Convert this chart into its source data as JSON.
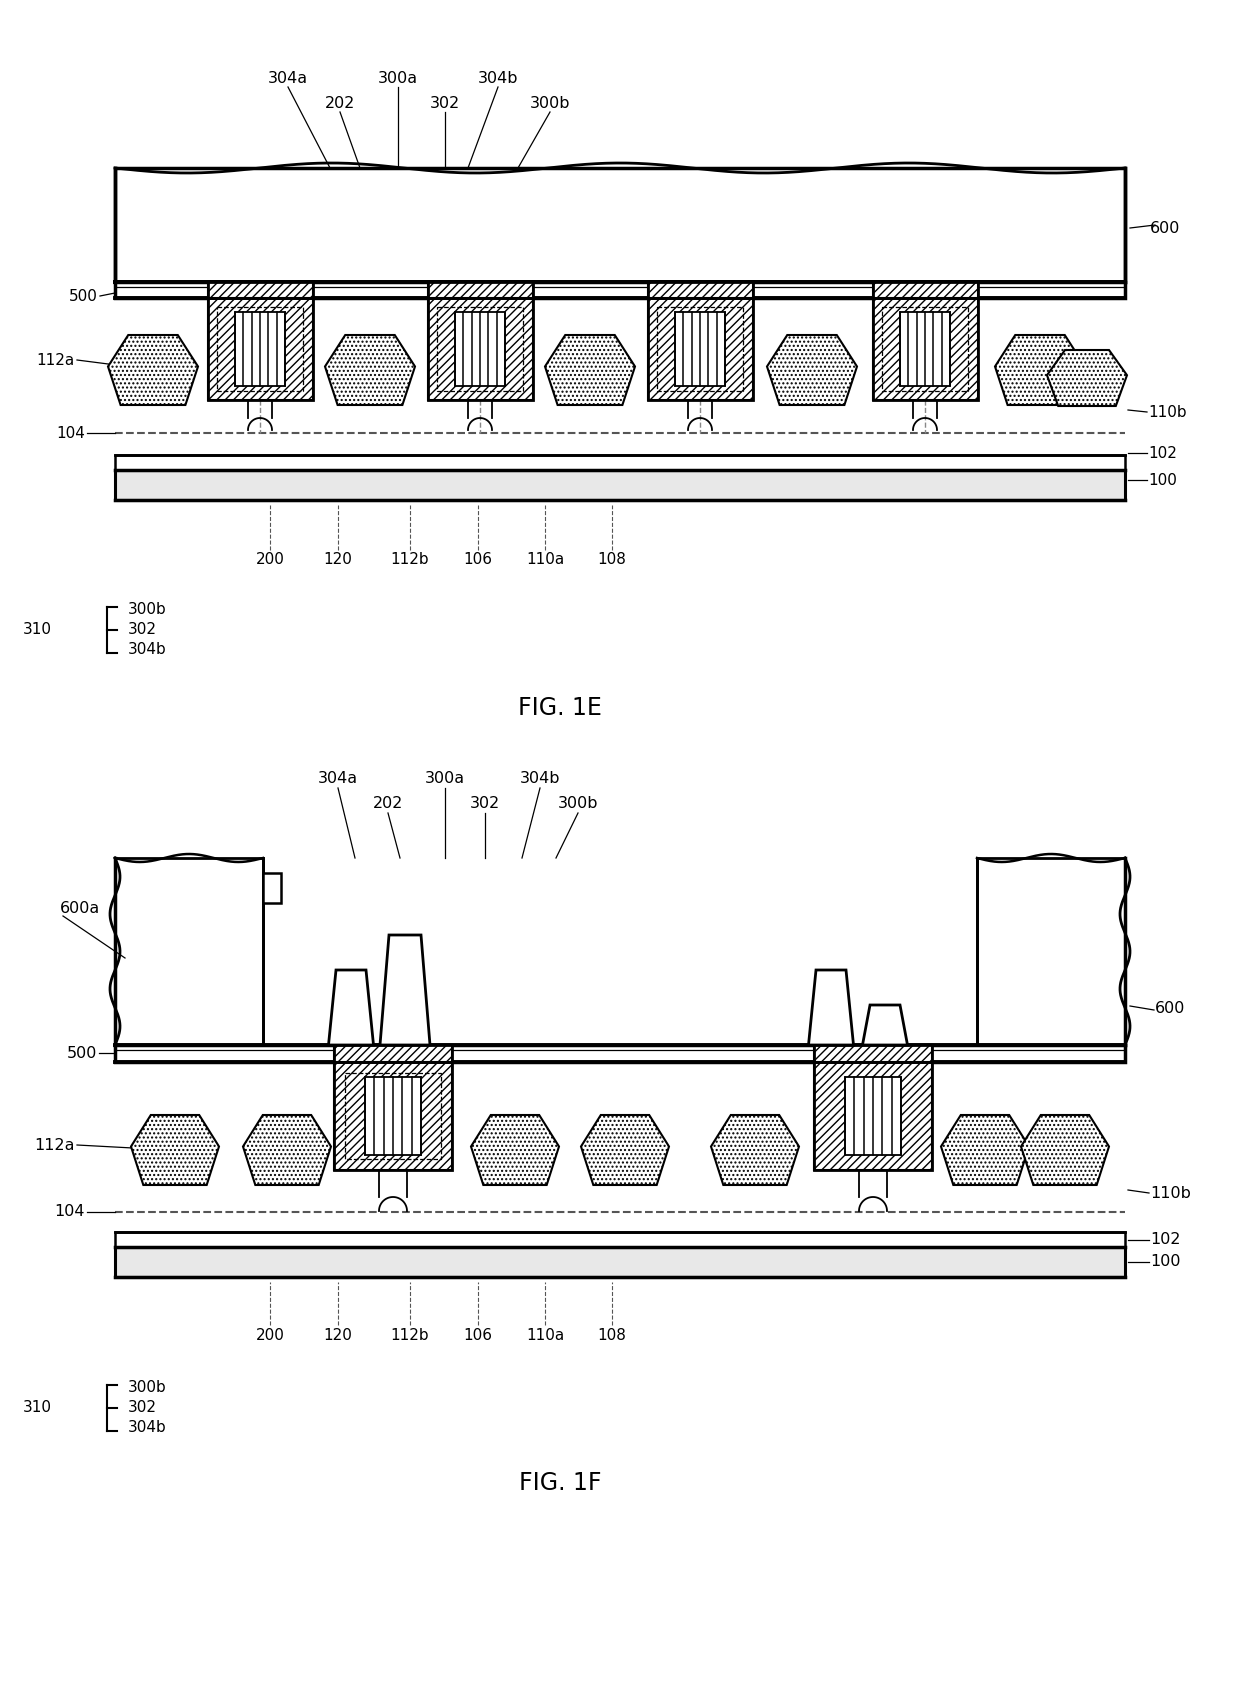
{
  "bg_color": "#ffffff",
  "fig_width": 12.4,
  "fig_height": 16.87,
  "dpi": 100,
  "fig1E_title": "FIG. 1E",
  "fig1F_title": "FIG. 1F",
  "labels_1E_top": [
    "304a",
    "300a",
    "304b",
    "202",
    "302",
    "300b"
  ],
  "labels_1E_left": [
    "500",
    "112a",
    "104"
  ],
  "labels_1E_right": [
    "110b",
    "102",
    "100"
  ],
  "labels_1E_bot": [
    "200",
    "120",
    "112b",
    "106",
    "110a",
    "108"
  ],
  "labels_1E_legend": [
    "300b",
    "302",
    "304b"
  ],
  "labels_1F_top": [
    "304a",
    "300a",
    "304b",
    "202",
    "302",
    "300b"
  ],
  "label_600": "600",
  "label_600a": "600a",
  "label_310": "310",
  "label_500": "500",
  "label_104": "104",
  "label_112a": "112a"
}
